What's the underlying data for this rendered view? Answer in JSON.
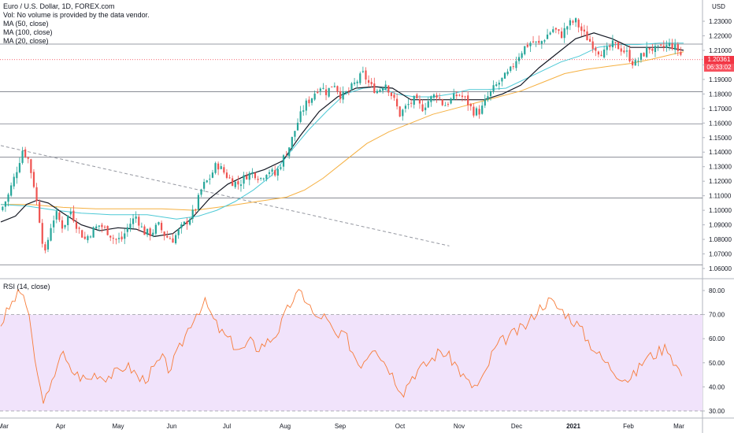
{
  "legend": {
    "title": "Euro / U.S. Dollar, 1D, FOREX.com",
    "volume_note": "Vol: No volume is provided by the data vendor.",
    "ma50": "MA (50, close)",
    "ma100": "MA (100, close)",
    "ma20": "MA (20, close)"
  },
  "rsi_legend": "RSI (14, close)",
  "currency": "USD",
  "last_price": "1.20361",
  "countdown": "06:33:02",
  "colors": {
    "up": "#26a69a",
    "down": "#ef5350",
    "ma50": "#131722",
    "ma100": "#4dc9d6",
    "ma20": "#f5b041",
    "rsi": "#f77c3a",
    "rsi_band": "#f1e3fb",
    "price_badge": "#f23645",
    "trendline": "#9598a1"
  },
  "chart_data": [
    {
      "type": "candlestick",
      "title": "Euro / U.S. Dollar, 1D, FOREX.com",
      "x_ticks": [
        "Mar",
        "Apr",
        "May",
        "Jun",
        "Jul",
        "Aug",
        "Sep",
        "Oct",
        "Nov",
        "Dec",
        "2021",
        "Feb",
        "Mar"
      ],
      "y_ticks": [
        "1.06000",
        "1.07000",
        "1.08000",
        "1.09000",
        "1.10000",
        "1.11000",
        "1.12000",
        "1.13000",
        "1.14000",
        "1.15000",
        "1.16000",
        "1.17000",
        "1.18000",
        "1.19000",
        "1.20000",
        "1.21000",
        "1.22000",
        "1.23000"
      ],
      "ylim": [
        1.055,
        1.236
      ],
      "horizontal_levels": [
        1.0625,
        1.1085,
        1.1365,
        1.1595,
        1.1815,
        1.2143
      ],
      "trendline": [
        [
          0,
          1.1445
        ],
        [
          245,
          1.0755
        ]
      ],
      "close_path": [
        [
          0,
          1.1
        ],
        [
          4,
          1.11
        ],
        [
          8,
          1.125
        ],
        [
          12,
          1.142
        ],
        [
          15,
          1.135
        ],
        [
          18,
          1.118
        ],
        [
          21,
          1.095
        ],
        [
          24,
          1.068
        ],
        [
          27,
          1.088
        ],
        [
          30,
          1.098
        ],
        [
          34,
          1.088
        ],
        [
          38,
          1.1
        ],
        [
          42,
          1.088
        ],
        [
          46,
          1.08
        ],
        [
          50,
          1.086
        ],
        [
          54,
          1.09
        ],
        [
          58,
          1.086
        ],
        [
          62,
          1.08
        ],
        [
          66,
          1.08
        ],
        [
          70,
          1.09
        ],
        [
          74,
          1.096
        ],
        [
          78,
          1.085
        ],
        [
          82,
          1.084
        ],
        [
          86,
          1.09
        ],
        [
          90,
          1.082
        ],
        [
          94,
          1.08
        ],
        [
          98,
          1.087
        ],
        [
          102,
          1.093
        ],
        [
          106,
          1.1
        ],
        [
          110,
          1.116
        ],
        [
          114,
          1.122
        ],
        [
          118,
          1.132
        ],
        [
          122,
          1.126
        ],
        [
          126,
          1.12
        ],
        [
          130,
          1.118
        ],
        [
          134,
          1.124
        ],
        [
          138,
          1.126
        ],
        [
          142,
          1.122
        ],
        [
          146,
          1.128
        ],
        [
          150,
          1.124
        ],
        [
          154,
          1.135
        ],
        [
          158,
          1.145
        ],
        [
          162,
          1.16
        ],
        [
          166,
          1.172
        ],
        [
          170,
          1.178
        ],
        [
          174,
          1.186
        ],
        [
          178,
          1.181
        ],
        [
          182,
          1.188
        ],
        [
          186,
          1.178
        ],
        [
          190,
          1.182
        ],
        [
          194,
          1.188
        ],
        [
          198,
          1.194
        ],
        [
          202,
          1.185
        ],
        [
          206,
          1.182
        ],
        [
          210,
          1.188
        ],
        [
          214,
          1.178
        ],
        [
          218,
          1.166
        ],
        [
          222,
          1.172
        ],
        [
          226,
          1.176
        ],
        [
          230,
          1.17
        ],
        [
          234,
          1.176
        ],
        [
          238,
          1.18
        ],
        [
          242,
          1.172
        ],
        [
          246,
          1.176
        ],
        [
          250,
          1.18
        ],
        [
          254,
          1.176
        ],
        [
          258,
          1.168
        ],
        [
          262,
          1.168
        ],
        [
          266,
          1.178
        ],
        [
          270,
          1.185
        ],
        [
          274,
          1.19
        ],
        [
          278,
          1.195
        ],
        [
          282,
          1.205
        ],
        [
          286,
          1.212
        ],
        [
          290,
          1.216
        ],
        [
          294,
          1.214
        ],
        [
          298,
          1.22
        ],
        [
          302,
          1.225
        ],
        [
          306,
          1.22
        ],
        [
          310,
          1.228
        ],
        [
          314,
          1.23
        ],
        [
          318,
          1.222
        ],
        [
          322,
          1.216
        ],
        [
          326,
          1.21
        ],
        [
          330,
          1.208
        ],
        [
          334,
          1.214
        ],
        [
          338,
          1.212
        ],
        [
          342,
          1.208
        ],
        [
          346,
          1.2
        ],
        [
          350,
          1.206
        ],
        [
          354,
          1.212
        ],
        [
          358,
          1.21
        ],
        [
          362,
          1.212
        ],
        [
          366,
          1.214
        ],
        [
          370,
          1.21
        ],
        [
          373,
          1.2036
        ]
      ],
      "ma50": [
        [
          0,
          1.092
        ],
        [
          8,
          1.096
        ],
        [
          14,
          1.104
        ],
        [
          20,
          1.107
        ],
        [
          26,
          1.105
        ],
        [
          34,
          1.098
        ],
        [
          44,
          1.09
        ],
        [
          54,
          1.086
        ],
        [
          64,
          1.088
        ],
        [
          74,
          1.087
        ],
        [
          84,
          1.082
        ],
        [
          94,
          1.084
        ],
        [
          104,
          1.094
        ],
        [
          114,
          1.108
        ],
        [
          124,
          1.118
        ],
        [
          134,
          1.124
        ],
        [
          144,
          1.128
        ],
        [
          154,
          1.134
        ],
        [
          164,
          1.152
        ],
        [
          174,
          1.168
        ],
        [
          184,
          1.178
        ],
        [
          194,
          1.184
        ],
        [
          204,
          1.185
        ],
        [
          214,
          1.184
        ],
        [
          224,
          1.176
        ],
        [
          234,
          1.176
        ],
        [
          244,
          1.176
        ],
        [
          254,
          1.176
        ],
        [
          264,
          1.176
        ],
        [
          274,
          1.18
        ],
        [
          284,
          1.186
        ],
        [
          294,
          1.198
        ],
        [
          304,
          1.208
        ],
        [
          314,
          1.218
        ],
        [
          324,
          1.222
        ],
        [
          334,
          1.218
        ],
        [
          344,
          1.212
        ],
        [
          354,
          1.212
        ],
        [
          364,
          1.212
        ],
        [
          373,
          1.21
        ]
      ],
      "ma100": [
        [
          0,
          1.104
        ],
        [
          14,
          1.103
        ],
        [
          30,
          1.1
        ],
        [
          44,
          1.098
        ],
        [
          60,
          1.097
        ],
        [
          80,
          1.097
        ],
        [
          96,
          1.094
        ],
        [
          108,
          1.096
        ],
        [
          118,
          1.1
        ],
        [
          128,
          1.106
        ],
        [
          138,
          1.114
        ],
        [
          148,
          1.124
        ],
        [
          158,
          1.14
        ],
        [
          168,
          1.155
        ],
        [
          178,
          1.168
        ],
        [
          188,
          1.18
        ],
        [
          198,
          1.184
        ],
        [
          206,
          1.185
        ],
        [
          216,
          1.18
        ],
        [
          226,
          1.178
        ],
        [
          236,
          1.178
        ],
        [
          246,
          1.18
        ],
        [
          256,
          1.183
        ],
        [
          266,
          1.183
        ],
        [
          276,
          1.184
        ],
        [
          286,
          1.19
        ],
        [
          296,
          1.196
        ],
        [
          306,
          1.202
        ],
        [
          316,
          1.206
        ],
        [
          326,
          1.212
        ],
        [
          336,
          1.214
        ],
        [
          348,
          1.214
        ],
        [
          360,
          1.215
        ],
        [
          373,
          1.215
        ]
      ],
      "ma20": [
        [
          0,
          1.104
        ],
        [
          16,
          1.104
        ],
        [
          34,
          1.102
        ],
        [
          52,
          1.101
        ],
        [
          70,
          1.101
        ],
        [
          88,
          1.101
        ],
        [
          106,
          1.1
        ],
        [
          124,
          1.103
        ],
        [
          140,
          1.106
        ],
        [
          156,
          1.109
        ],
        [
          166,
          1.114
        ],
        [
          176,
          1.122
        ],
        [
          188,
          1.134
        ],
        [
          200,
          1.146
        ],
        [
          212,
          1.154
        ],
        [
          224,
          1.16
        ],
        [
          236,
          1.166
        ],
        [
          248,
          1.17
        ],
        [
          260,
          1.174
        ],
        [
          272,
          1.178
        ],
        [
          284,
          1.182
        ],
        [
          296,
          1.188
        ],
        [
          308,
          1.194
        ],
        [
          320,
          1.197
        ],
        [
          332,
          1.199
        ],
        [
          344,
          1.201
        ],
        [
          356,
          1.204
        ],
        [
          366,
          1.207
        ],
        [
          373,
          1.209
        ]
      ]
    },
    {
      "type": "line",
      "title": "RSI (14, close)",
      "y_ticks": [
        "30.00",
        "40.00",
        "50.00",
        "60.00",
        "70.00",
        "80.00"
      ],
      "ylim": [
        28,
        83
      ],
      "band": [
        30,
        70
      ],
      "series": [
        {
          "name": "RSI (14, close)",
          "points": [
            [
              0,
              66
            ],
            [
              4,
              72
            ],
            [
              8,
              77
            ],
            [
              12,
              80
            ],
            [
              15,
              70
            ],
            [
              18,
              55
            ],
            [
              21,
              40
            ],
            [
              24,
              34
            ],
            [
              27,
              38
            ],
            [
              30,
              48
            ],
            [
              33,
              55
            ],
            [
              37,
              48
            ],
            [
              40,
              46
            ],
            [
              44,
              44
            ],
            [
              48,
              43
            ],
            [
              52,
              46
            ],
            [
              56,
              44
            ],
            [
              60,
              45
            ],
            [
              64,
              46
            ],
            [
              68,
              49
            ],
            [
              72,
              47
            ],
            [
              76,
              43
            ],
            [
              80,
              44
            ],
            [
              84,
              48
            ],
            [
              88,
              52
            ],
            [
              92,
              47
            ],
            [
              96,
              53
            ],
            [
              100,
              60
            ],
            [
              104,
              67
            ],
            [
              108,
              72
            ],
            [
              112,
              75
            ],
            [
              116,
              68
            ],
            [
              120,
              63
            ],
            [
              124,
              60
            ],
            [
              128,
              57
            ],
            [
              132,
              55
            ],
            [
              136,
              59
            ],
            [
              140,
              56
            ],
            [
              144,
              58
            ],
            [
              148,
              60
            ],
            [
              152,
              64
            ],
            [
              156,
              71
            ],
            [
              160,
              77
            ],
            [
              164,
              79
            ],
            [
              168,
              75
            ],
            [
              172,
              68
            ],
            [
              176,
              70
            ],
            [
              180,
              65
            ],
            [
              184,
              60
            ],
            [
              188,
              62
            ],
            [
              192,
              55
            ],
            [
              196,
              49
            ],
            [
              200,
              53
            ],
            [
              204,
              58
            ],
            [
              208,
              52
            ],
            [
              212,
              48
            ],
            [
              216,
              42
            ],
            [
              220,
              38
            ],
            [
              224,
              44
            ],
            [
              228,
              47
            ],
            [
              232,
              49
            ],
            [
              236,
              52
            ],
            [
              240,
              55
            ],
            [
              244,
              53
            ],
            [
              248,
              50
            ],
            [
              252,
              45
            ],
            [
              256,
              41
            ],
            [
              260,
              40
            ],
            [
              264,
              44
            ],
            [
              268,
              53
            ],
            [
              272,
              58
            ],
            [
              276,
              60
            ],
            [
              280,
              62
            ],
            [
              284,
              64
            ],
            [
              288,
              66
            ],
            [
              292,
              71
            ],
            [
              296,
              74
            ],
            [
              300,
              76
            ],
            [
              304,
              73
            ],
            [
              308,
              71
            ],
            [
              312,
              68
            ],
            [
              316,
              65
            ],
            [
              320,
              60
            ],
            [
              324,
              56
            ],
            [
              328,
              52
            ],
            [
              332,
              49
            ],
            [
              336,
              46
            ],
            [
              340,
              44
            ],
            [
              344,
              43
            ],
            [
              348,
              47
            ],
            [
              352,
              52
            ],
            [
              356,
              53
            ],
            [
              360,
              55
            ],
            [
              364,
              57
            ],
            [
              368,
              50
            ],
            [
              373,
              44
            ]
          ]
        }
      ]
    }
  ]
}
